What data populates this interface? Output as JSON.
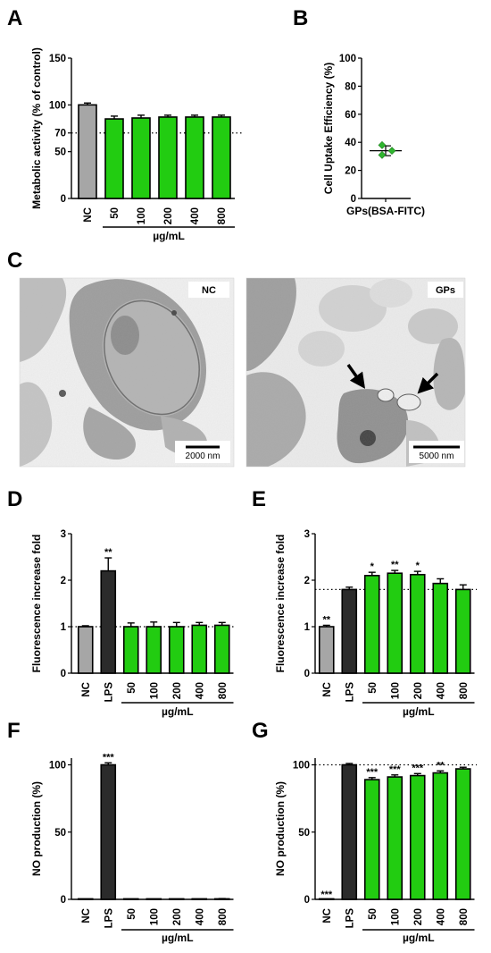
{
  "colors": {
    "nc": "#a6a6a6",
    "lps": "#2b2b2b",
    "treated": "#22cc11",
    "outline": "#000000",
    "dots": "#2fb52f"
  },
  "chart_data": [
    {
      "panel": "A",
      "type": "bar",
      "ylabel": "Metabolic activity (% of control)",
      "xlabel": "µg/mL",
      "categories": [
        "NC",
        "50",
        "100",
        "200",
        "400",
        "800"
      ],
      "values": [
        100,
        85,
        86,
        87,
        87,
        87
      ],
      "errors": [
        2,
        3,
        3,
        2,
        2,
        2
      ],
      "fills": [
        "nc",
        "treated",
        "treated",
        "treated",
        "treated",
        "treated"
      ],
      "yticks": [
        0,
        50,
        70,
        100,
        150
      ],
      "ylim": [
        0,
        150
      ],
      "reference_line": 70,
      "stars": [
        "",
        "",
        "",
        "",
        "",
        ""
      ]
    },
    {
      "panel": "B",
      "type": "scatter",
      "ylabel": "Cell Uptake Efficiency (%)",
      "categories": [
        "GPs(BSA-FITC)"
      ],
      "points": [
        38,
        34,
        31
      ],
      "mean": 34,
      "sd": 3.5,
      "yticks": [
        0,
        20,
        40,
        60,
        80,
        100
      ],
      "ylim": [
        0,
        100
      ]
    },
    {
      "panel": "D",
      "type": "bar",
      "ylabel": "Fluorescence increase fold",
      "xlabel": "µg/mL",
      "categories": [
        "NC",
        "LPS",
        "50",
        "100",
        "200",
        "400",
        "800"
      ],
      "values": [
        1.0,
        2.2,
        1.0,
        1.0,
        1.0,
        1.03,
        1.03
      ],
      "errors": [
        0.02,
        0.28,
        0.08,
        0.1,
        0.09,
        0.06,
        0.06
      ],
      "fills": [
        "nc",
        "lps",
        "treated",
        "treated",
        "treated",
        "treated",
        "treated"
      ],
      "yticks": [
        0,
        1,
        2,
        3
      ],
      "ylim": [
        0,
        3
      ],
      "reference_line": 1,
      "stars": [
        "",
        "**",
        "",
        "",
        "",
        "",
        ""
      ]
    },
    {
      "panel": "E",
      "type": "bar",
      "ylabel": "Fluorescence increase fold",
      "xlabel": "µg/mL",
      "categories": [
        "NC",
        "LPS",
        "50",
        "100",
        "200",
        "400",
        "800"
      ],
      "values": [
        1.0,
        1.8,
        2.1,
        2.15,
        2.12,
        1.93,
        1.8
      ],
      "errors": [
        0.03,
        0.05,
        0.07,
        0.06,
        0.07,
        0.1,
        0.1
      ],
      "fills": [
        "nc",
        "lps",
        "treated",
        "treated",
        "treated",
        "treated",
        "treated"
      ],
      "yticks": [
        0,
        1,
        2,
        3
      ],
      "ylim": [
        0,
        3
      ],
      "reference_line": 1.8,
      "stars": [
        "**",
        "",
        "*",
        "**",
        "*",
        "",
        ""
      ]
    },
    {
      "panel": "F",
      "type": "bar",
      "ylabel": "NO production (%)",
      "xlabel": "µg/mL",
      "categories": [
        "NC",
        "LPS",
        "50",
        "100",
        "200",
        "400",
        "800"
      ],
      "values": [
        0,
        100,
        0,
        0,
        0,
        0,
        0.3
      ],
      "errors": [
        0,
        1.5,
        0,
        0,
        0,
        0,
        0.3
      ],
      "fills": [
        "nc",
        "lps",
        "treated",
        "treated",
        "treated",
        "treated",
        "treated"
      ],
      "yticks": [
        0,
        50,
        100
      ],
      "ylim": [
        0,
        105
      ],
      "stars": [
        "",
        "***",
        "",
        "",
        "",
        "",
        ""
      ]
    },
    {
      "panel": "G",
      "type": "bar",
      "ylabel": "NO production (%)",
      "xlabel": "µg/mL",
      "categories": [
        "NC",
        "LPS",
        "50",
        "100",
        "200",
        "400",
        "800"
      ],
      "values": [
        0,
        100,
        89,
        91,
        92,
        94,
        97
      ],
      "errors": [
        0,
        1,
        1.5,
        1.5,
        1.5,
        1.5,
        1.2
      ],
      "fills": [
        "nc",
        "lps",
        "treated",
        "treated",
        "treated",
        "treated",
        "treated"
      ],
      "yticks": [
        0,
        50,
        100
      ],
      "ylim": [
        0,
        105
      ],
      "reference_line": 100,
      "stars": [
        "***",
        "",
        "***",
        "***",
        "***",
        "**",
        ""
      ]
    }
  ],
  "panels": {
    "A": "A",
    "B": "B",
    "C": "C",
    "D": "D",
    "E": "E",
    "F": "F",
    "G": "G"
  },
  "micrographs": {
    "nc": {
      "label": "NC",
      "scale_bar": "2000 nm"
    },
    "gps": {
      "label": "GPs",
      "scale_bar": "5000 nm"
    }
  }
}
